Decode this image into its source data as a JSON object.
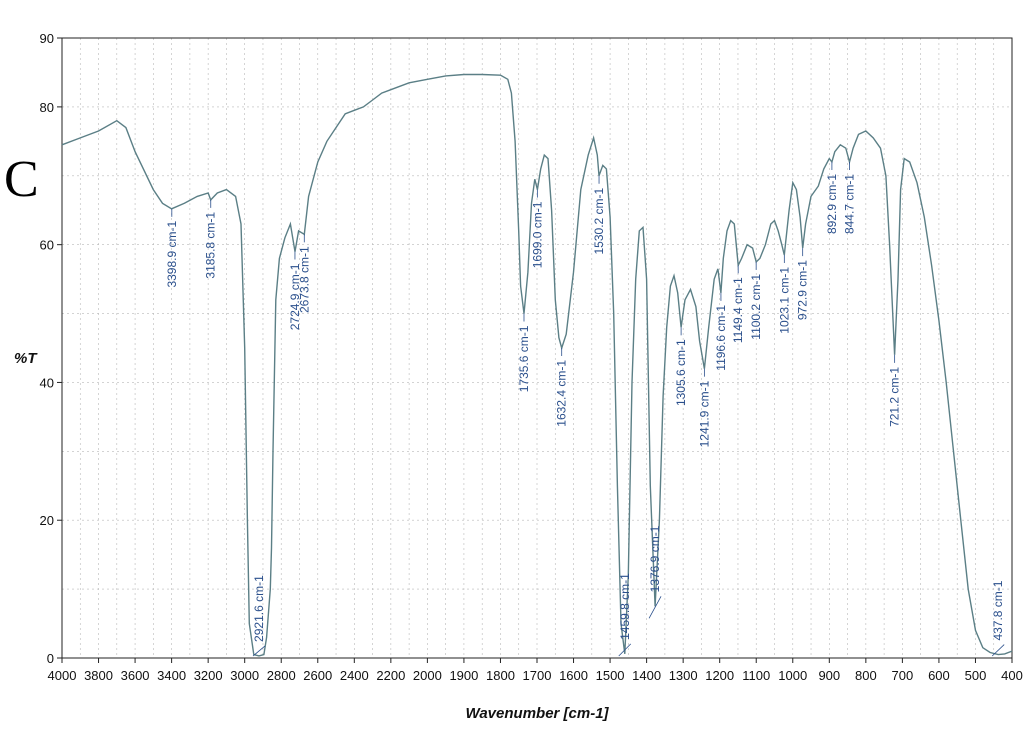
{
  "panel_letter": "C",
  "chart_data": {
    "type": "line",
    "title": "",
    "xlabel": "Wavenumber [cm-1]",
    "ylabel": "%T",
    "xlim": [
      4000,
      400
    ],
    "ylim": [
      0,
      90
    ],
    "x_reversed": true,
    "grid": true,
    "x_ticks": [
      4000,
      3800,
      3600,
      3400,
      3200,
      3000,
      2800,
      2600,
      2400,
      2200,
      2000,
      1900,
      1800,
      1700,
      1600,
      1500,
      1400,
      1300,
      1200,
      1100,
      1000,
      900,
      800,
      700,
      600,
      500,
      400
    ],
    "y_ticks": [
      0,
      20,
      40,
      60,
      80,
      90
    ],
    "series": [
      {
        "color": "#5b7f86",
        "points": [
          [
            4000,
            74.5
          ],
          [
            3900,
            75.5
          ],
          [
            3800,
            76.5
          ],
          [
            3700,
            78
          ],
          [
            3650,
            77
          ],
          [
            3600,
            73.5
          ],
          [
            3500,
            68
          ],
          [
            3450,
            66
          ],
          [
            3400,
            65.2
          ],
          [
            3330,
            66
          ],
          [
            3260,
            67
          ],
          [
            3200,
            67.5
          ],
          [
            3185.8,
            66.5
          ],
          [
            3150,
            67.5
          ],
          [
            3100,
            68
          ],
          [
            3050,
            67
          ],
          [
            3020,
            63
          ],
          [
            3000,
            45
          ],
          [
            2985,
            20
          ],
          [
            2975,
            5
          ],
          [
            2950,
            0.5
          ],
          [
            2921.6,
            0.3
          ],
          [
            2895,
            0.5
          ],
          [
            2880,
            3
          ],
          [
            2860,
            10
          ],
          [
            2853,
            16
          ],
          [
            2845,
            30
          ],
          [
            2830,
            52
          ],
          [
            2810,
            58
          ],
          [
            2780,
            61
          ],
          [
            2750,
            63
          ],
          [
            2724.9,
            59
          ],
          [
            2705,
            62
          ],
          [
            2673.8,
            61.5
          ],
          [
            2650,
            67
          ],
          [
            2600,
            72
          ],
          [
            2550,
            75
          ],
          [
            2500,
            77
          ],
          [
            2450,
            79
          ],
          [
            2400,
            79.5
          ],
          [
            2350,
            80
          ],
          [
            2300,
            81
          ],
          [
            2250,
            82
          ],
          [
            2200,
            82.5
          ],
          [
            2100,
            83.5
          ],
          [
            2000,
            84
          ],
          [
            1950,
            84.5
          ],
          [
            1900,
            84.7
          ],
          [
            1850,
            84.7
          ],
          [
            1800,
            84.6
          ],
          [
            1780,
            84
          ],
          [
            1770,
            82
          ],
          [
            1760,
            75
          ],
          [
            1750,
            62
          ],
          [
            1745,
            54
          ],
          [
            1735.6,
            50
          ],
          [
            1725,
            56
          ],
          [
            1715,
            66
          ],
          [
            1706,
            69.5
          ],
          [
            1699,
            68
          ],
          [
            1690,
            71
          ],
          [
            1680,
            73
          ],
          [
            1670,
            72.5
          ],
          [
            1660,
            65
          ],
          [
            1650,
            52
          ],
          [
            1640,
            46.5
          ],
          [
            1632.4,
            45
          ],
          [
            1620,
            47
          ],
          [
            1600,
            56
          ],
          [
            1580,
            68
          ],
          [
            1560,
            73
          ],
          [
            1545,
            75.5
          ],
          [
            1535,
            73
          ],
          [
            1530.2,
            70
          ],
          [
            1520,
            71.5
          ],
          [
            1510,
            71
          ],
          [
            1500,
            64
          ],
          [
            1490,
            50
          ],
          [
            1480,
            25
          ],
          [
            1470,
            5
          ],
          [
            1459.8,
            0.6
          ],
          [
            1450,
            12
          ],
          [
            1440,
            40
          ],
          [
            1430,
            55
          ],
          [
            1420,
            62
          ],
          [
            1410,
            62.5
          ],
          [
            1400,
            55
          ],
          [
            1390,
            25
          ],
          [
            1376.9,
            7.5
          ],
          [
            1365,
            20
          ],
          [
            1355,
            38
          ],
          [
            1345,
            48
          ],
          [
            1335,
            54
          ],
          [
            1325,
            55.5
          ],
          [
            1315,
            53
          ],
          [
            1305.6,
            48
          ],
          [
            1295,
            52
          ],
          [
            1280,
            53.5
          ],
          [
            1265,
            51
          ],
          [
            1255,
            46
          ],
          [
            1241.9,
            42
          ],
          [
            1230,
            48
          ],
          [
            1215,
            55
          ],
          [
            1205,
            56.5
          ],
          [
            1196.6,
            53
          ],
          [
            1190,
            58
          ],
          [
            1180,
            62
          ],
          [
            1170,
            63.5
          ],
          [
            1160,
            63
          ],
          [
            1149.4,
            57
          ],
          [
            1140,
            58
          ],
          [
            1125,
            60
          ],
          [
            1110,
            59.5
          ],
          [
            1100.2,
            57.5
          ],
          [
            1090,
            58
          ],
          [
            1075,
            60
          ],
          [
            1060,
            63
          ],
          [
            1050,
            63.5
          ],
          [
            1040,
            62
          ],
          [
            1030,
            60
          ],
          [
            1023.1,
            58.5
          ],
          [
            1010,
            65
          ],
          [
            1000,
            69
          ],
          [
            990,
            68
          ],
          [
            980,
            64
          ],
          [
            972.9,
            59.5
          ],
          [
            965,
            63
          ],
          [
            950,
            67
          ],
          [
            930,
            68.5
          ],
          [
            915,
            71
          ],
          [
            900,
            72.5
          ],
          [
            892.9,
            72
          ],
          [
            885,
            73.5
          ],
          [
            870,
            74.5
          ],
          [
            855,
            74
          ],
          [
            844.7,
            72
          ],
          [
            835,
            74
          ],
          [
            820,
            76
          ],
          [
            800,
            76.5
          ],
          [
            780,
            75.5
          ],
          [
            760,
            74
          ],
          [
            745,
            70
          ],
          [
            735,
            60
          ],
          [
            721.2,
            44
          ],
          [
            712,
            55
          ],
          [
            705,
            68
          ],
          [
            695,
            72.5
          ],
          [
            680,
            72
          ],
          [
            660,
            69
          ],
          [
            640,
            64
          ],
          [
            620,
            57
          ],
          [
            600,
            49
          ],
          [
            580,
            40
          ],
          [
            560,
            30
          ],
          [
            540,
            20
          ],
          [
            520,
            10
          ],
          [
            500,
            4
          ],
          [
            480,
            1.5
          ],
          [
            460,
            0.8
          ],
          [
            437.8,
            0.5
          ],
          [
            420,
            0.6
          ],
          [
            400,
            1
          ]
        ]
      }
    ],
    "peaks": [
      {
        "x": 3398.9,
        "y": 65.2,
        "label": "3398.9 cm-1"
      },
      {
        "x": 3185.8,
        "y": 66.5,
        "label": "3185.8 cm-1"
      },
      {
        "x": 2921.6,
        "y": 0.3,
        "label": "2921.6 cm-1"
      },
      {
        "x": 2724.9,
        "y": 59,
        "label": "2724.9 cm-1"
      },
      {
        "x": 2673.8,
        "y": 61.5,
        "label": "2673.8 cm-1"
      },
      {
        "x": 1735.6,
        "y": 50,
        "label": "1735.6 cm-1"
      },
      {
        "x": 1699.0,
        "y": 68,
        "label": "1699.0 cm-1"
      },
      {
        "x": 1632.4,
        "y": 45,
        "label": "1632.4 cm-1"
      },
      {
        "x": 1530.2,
        "y": 70,
        "label": "1530.2 cm-1"
      },
      {
        "x": 1459.8,
        "y": 0.6,
        "label": "1459.8 cm-1"
      },
      {
        "x": 1376.9,
        "y": 7.5,
        "label": "1376.9 cm-1"
      },
      {
        "x": 1305.6,
        "y": 48,
        "label": "1305.6 cm-1"
      },
      {
        "x": 1241.9,
        "y": 42,
        "label": "1241.9 cm-1"
      },
      {
        "x": 1196.6,
        "y": 53,
        "label": "1196.6 cm-1"
      },
      {
        "x": 1149.4,
        "y": 57,
        "label": "1149.4 cm-1"
      },
      {
        "x": 1100.2,
        "y": 57.5,
        "label": "1100.2 cm-1"
      },
      {
        "x": 1023.1,
        "y": 58.5,
        "label": "1023.1 cm-1"
      },
      {
        "x": 972.9,
        "y": 59.5,
        "label": "972.9 cm-1"
      },
      {
        "x": 892.9,
        "y": 72,
        "label": "892.9 cm-1"
      },
      {
        "x": 844.7,
        "y": 72,
        "label": "844.7 cm-1"
      },
      {
        "x": 721.2,
        "y": 44,
        "label": "721.2 cm-1"
      },
      {
        "x": 437.8,
        "y": 0.5,
        "label": "437.8 cm-1"
      }
    ]
  }
}
